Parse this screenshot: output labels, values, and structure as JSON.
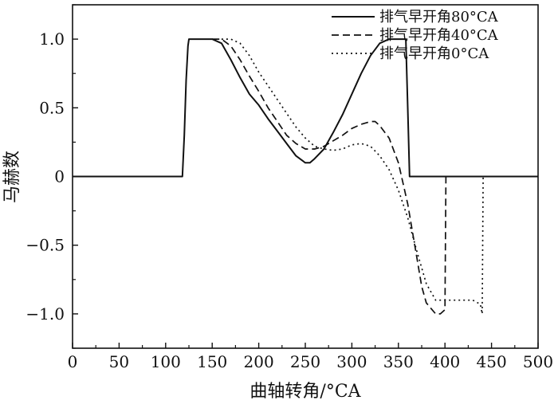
{
  "chart_data": {
    "type": "line",
    "title": "",
    "xlabel": "曲轴转角/°CA",
    "ylabel": "马赫数",
    "xlim": [
      0,
      500
    ],
    "ylim": [
      -1.25,
      1.25
    ],
    "xticks": [
      0,
      50,
      100,
      150,
      200,
      250,
      300,
      350,
      400,
      450,
      500
    ],
    "yticks": [
      1.0,
      0.5,
      0,
      -0.5,
      -1.0
    ],
    "ytick_labels": [
      "1.0",
      "0.5",
      "0",
      "−0.5",
      "−1.0"
    ],
    "grid": false,
    "legend_position": "top-right",
    "series": [
      {
        "name": "排气早开角80°CA",
        "style": "solid",
        "x": [
          0,
          118,
          120,
          122,
          124,
          125,
          130,
          140,
          150,
          160,
          170,
          180,
          190,
          200,
          210,
          220,
          230,
          240,
          250,
          255,
          260,
          270,
          280,
          290,
          300,
          310,
          320,
          330,
          340,
          350,
          358,
          360,
          362,
          380,
          400,
          420,
          440,
          460,
          480,
          500
        ],
        "y": [
          0,
          0,
          0.3,
          0.7,
          0.95,
          1.0,
          1.0,
          1.0,
          1.0,
          0.97,
          0.85,
          0.72,
          0.6,
          0.52,
          0.42,
          0.33,
          0.24,
          0.15,
          0.1,
          0.1,
          0.13,
          0.2,
          0.32,
          0.45,
          0.6,
          0.75,
          0.88,
          0.97,
          1.0,
          1.0,
          1.0,
          0.5,
          0,
          0,
          0,
          0,
          0,
          0,
          0,
          0
        ]
      },
      {
        "name": "排气早开角40°CA",
        "style": "dashed",
        "x": [
          150,
          160,
          170,
          180,
          190,
          200,
          210,
          220,
          230,
          240,
          250,
          260,
          270,
          280,
          290,
          300,
          310,
          320,
          325,
          330,
          340,
          350,
          360,
          370,
          375,
          380,
          390,
          395,
          400,
          401
        ],
        "y": [
          1.0,
          1.0,
          0.95,
          0.85,
          0.73,
          0.62,
          0.5,
          0.4,
          0.3,
          0.24,
          0.2,
          0.2,
          0.22,
          0.26,
          0.3,
          0.35,
          0.38,
          0.4,
          0.4,
          0.37,
          0.28,
          0.1,
          -0.2,
          -0.6,
          -0.8,
          -0.92,
          -1.0,
          -1.0,
          -0.97,
          0
        ]
      },
      {
        "name": "排气早开角0°CA",
        "style": "dotted",
        "x": [
          160,
          170,
          180,
          190,
          200,
          210,
          220,
          230,
          240,
          250,
          260,
          270,
          280,
          290,
          300,
          310,
          320,
          330,
          340,
          350,
          360,
          370,
          380,
          390,
          400,
          420,
          430,
          438,
          440,
          441
        ],
        "y": [
          1.0,
          1.0,
          0.97,
          0.88,
          0.76,
          0.66,
          0.56,
          0.46,
          0.36,
          0.28,
          0.22,
          0.2,
          0.19,
          0.2,
          0.23,
          0.24,
          0.22,
          0.15,
          0.05,
          -0.1,
          -0.3,
          -0.55,
          -0.78,
          -0.9,
          -0.9,
          -0.9,
          -0.9,
          -0.93,
          -1.0,
          0
        ]
      }
    ]
  }
}
